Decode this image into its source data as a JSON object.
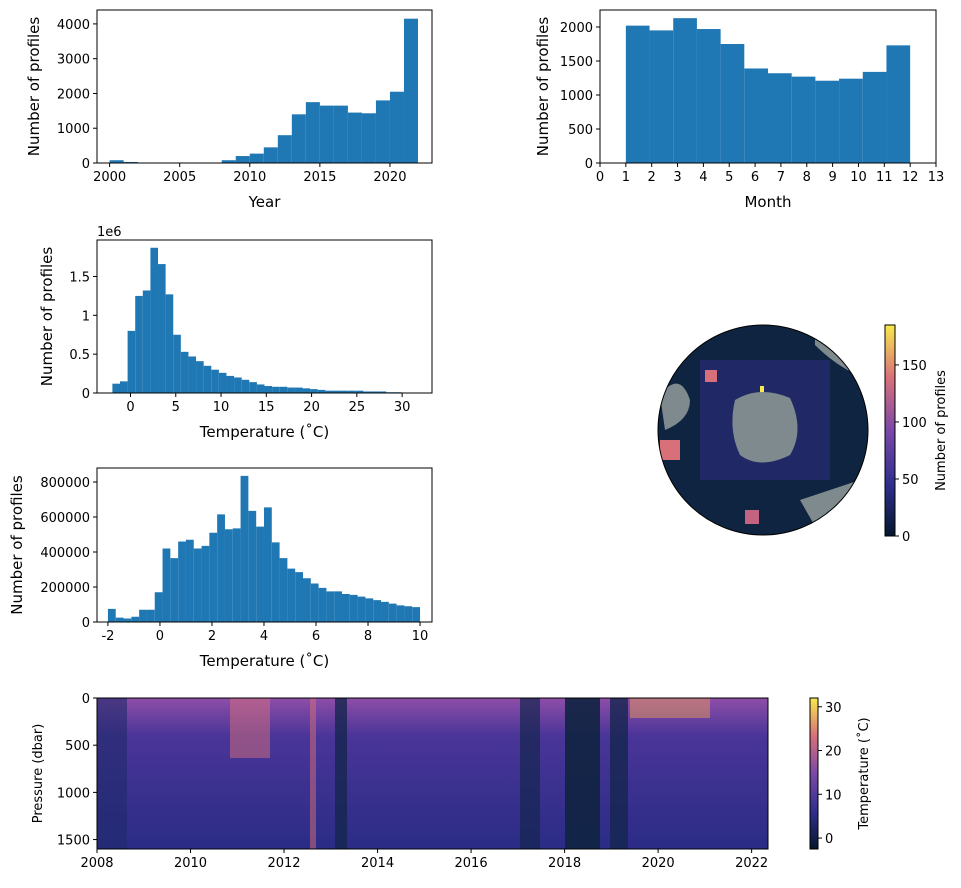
{
  "chart_data": [
    {
      "type": "histogram",
      "xlabel": "Year",
      "ylabel": "Number of profiles",
      "color": "#1f77b4",
      "bins": [
        2000,
        2001,
        2002,
        2003,
        2004,
        2005,
        2006,
        2007,
        2008,
        2009,
        2010,
        2011,
        2012,
        2013,
        2014,
        2015,
        2016,
        2017,
        2018,
        2019,
        2020,
        2021,
        2022
      ],
      "values": [
        80,
        30,
        3,
        3,
        3,
        3,
        3,
        10,
        80,
        200,
        270,
        450,
        800,
        1400,
        1750,
        1650,
        1650,
        1450,
        1430,
        1800,
        2050,
        4150
      ],
      "xlim": [
        1999.1,
        2023
      ],
      "xticks": [
        2000,
        2005,
        2010,
        2015,
        2020
      ],
      "ylim": [
        0,
        4400
      ],
      "yticks": [
        0,
        1000,
        2000,
        3000,
        4000
      ]
    },
    {
      "type": "histogram",
      "xlabel": "Month",
      "ylabel": "Number of profiles",
      "color": "#1f77b4",
      "bins": [
        1,
        1.917,
        2.833,
        3.75,
        4.667,
        5.583,
        6.5,
        7.417,
        8.333,
        9.25,
        10.167,
        11.083,
        12
      ],
      "values": [
        2020,
        1950,
        2130,
        1970,
        1750,
        1390,
        1320,
        1270,
        1210,
        1240,
        1340,
        1730
      ],
      "xlim": [
        0,
        13
      ],
      "xticks": [
        0,
        1,
        2,
        3,
        4,
        5,
        6,
        7,
        8,
        9,
        10,
        11,
        12,
        13
      ],
      "ylim": [
        0,
        2250
      ],
      "yticks": [
        0,
        500,
        1000,
        1500,
        2000
      ]
    },
    {
      "type": "histogram",
      "xlabel": "Temperature ($^\\circ$C)",
      "ylabel": "Number of profiles",
      "y_offset_label": "1e6",
      "color": "#1f77b4",
      "bins": [
        -2,
        -1.16,
        -0.32,
        0.52,
        1.36,
        2.2,
        3.04,
        3.88,
        4.72,
        5.56,
        6.4,
        7.24,
        8.08,
        8.92,
        9.76,
        10.6,
        11.44,
        12.28,
        13.12,
        13.96,
        14.8,
        15.64,
        16.48,
        17.32,
        18.16,
        19,
        19.84,
        20.68,
        21.52,
        22.36,
        23.2,
        24.04,
        24.88,
        25.72,
        26.56,
        27.4,
        28.24,
        29.08,
        29.92,
        30.76,
        31.6
      ],
      "values": [
        0.12,
        0.15,
        0.8,
        1.25,
        1.32,
        1.87,
        1.66,
        1.27,
        0.75,
        0.53,
        0.47,
        0.41,
        0.35,
        0.3,
        0.26,
        0.22,
        0.2,
        0.17,
        0.14,
        0.11,
        0.09,
        0.08,
        0.08,
        0.07,
        0.07,
        0.06,
        0.05,
        0.04,
        0.03,
        0.03,
        0.03,
        0.03,
        0.03,
        0.02,
        0.02,
        0.02,
        0.01,
        0.01,
        0.005,
        0.003
      ],
      "xlim": [
        -3.7,
        33.3
      ],
      "xticks": [
        0,
        5,
        10,
        15,
        20,
        25,
        30
      ],
      "ylim": [
        0,
        1.97
      ],
      "yticks": [
        0,
        0.5,
        1,
        1.5
      ]
    },
    {
      "type": "histogram",
      "xlabel": "Temperature ($^\\circ$C)",
      "ylabel": "Number of profiles",
      "color": "#1f77b4",
      "bins": [
        -2,
        -1.7,
        -1.4,
        -1.1,
        -0.8,
        -0.5,
        -0.2,
        0.1,
        0.4,
        0.7,
        1,
        1.3,
        1.6,
        1.9,
        2.2,
        2.5,
        2.8,
        3.1,
        3.4,
        3.7,
        4,
        4.3,
        4.6,
        4.9,
        5.2,
        5.5,
        5.8,
        6.1,
        6.4,
        6.7,
        7,
        7.3,
        7.6,
        7.9,
        8.2,
        8.5,
        8.8,
        9.1,
        9.4,
        9.7,
        10
      ],
      "values": [
        75000,
        25000,
        20000,
        30000,
        70000,
        70000,
        170000,
        420000,
        365000,
        460000,
        470000,
        420000,
        435000,
        510000,
        615000,
        530000,
        535000,
        835000,
        635000,
        545000,
        655000,
        455000,
        365000,
        305000,
        285000,
        250000,
        220000,
        195000,
        175000,
        175000,
        160000,
        155000,
        145000,
        135000,
        125000,
        115000,
        105000,
        95000,
        90000,
        85000
      ],
      "xlim": [
        -2.42,
        10.46
      ],
      "xticks": [
        -2,
        0,
        2,
        4,
        6,
        8,
        10
      ],
      "ylim": [
        0,
        880000
      ],
      "yticks": [
        0,
        200000,
        400000,
        600000,
        800000
      ]
    },
    {
      "type": "polar-map",
      "colorbar_label": "Number of profiles",
      "colormap": [
        "#04172e",
        "#2f2f8f",
        "#7b48a8",
        "#d8707a",
        "#f8e94c"
      ],
      "clim": [
        0,
        185
      ],
      "cticks": [
        0,
        50,
        100,
        150
      ]
    },
    {
      "type": "section",
      "ylabel": "Pressure (dbar)",
      "colorbar_label": "Temperature ($^\\circ$C)",
      "colormap": [
        "#04172e",
        "#2f2f8f",
        "#7b48a8",
        "#d8707a",
        "#f8e94c"
      ],
      "xlim": [
        2008,
        2022.35
      ],
      "xticks": [
        2008,
        2010,
        2012,
        2014,
        2016,
        2018,
        2020,
        2022
      ],
      "ylim": [
        1600,
        0
      ],
      "yticks": [
        0,
        500,
        1000,
        1500
      ],
      "clim": [
        -2.5,
        32
      ],
      "cticks": [
        0,
        10,
        20,
        30
      ]
    }
  ]
}
